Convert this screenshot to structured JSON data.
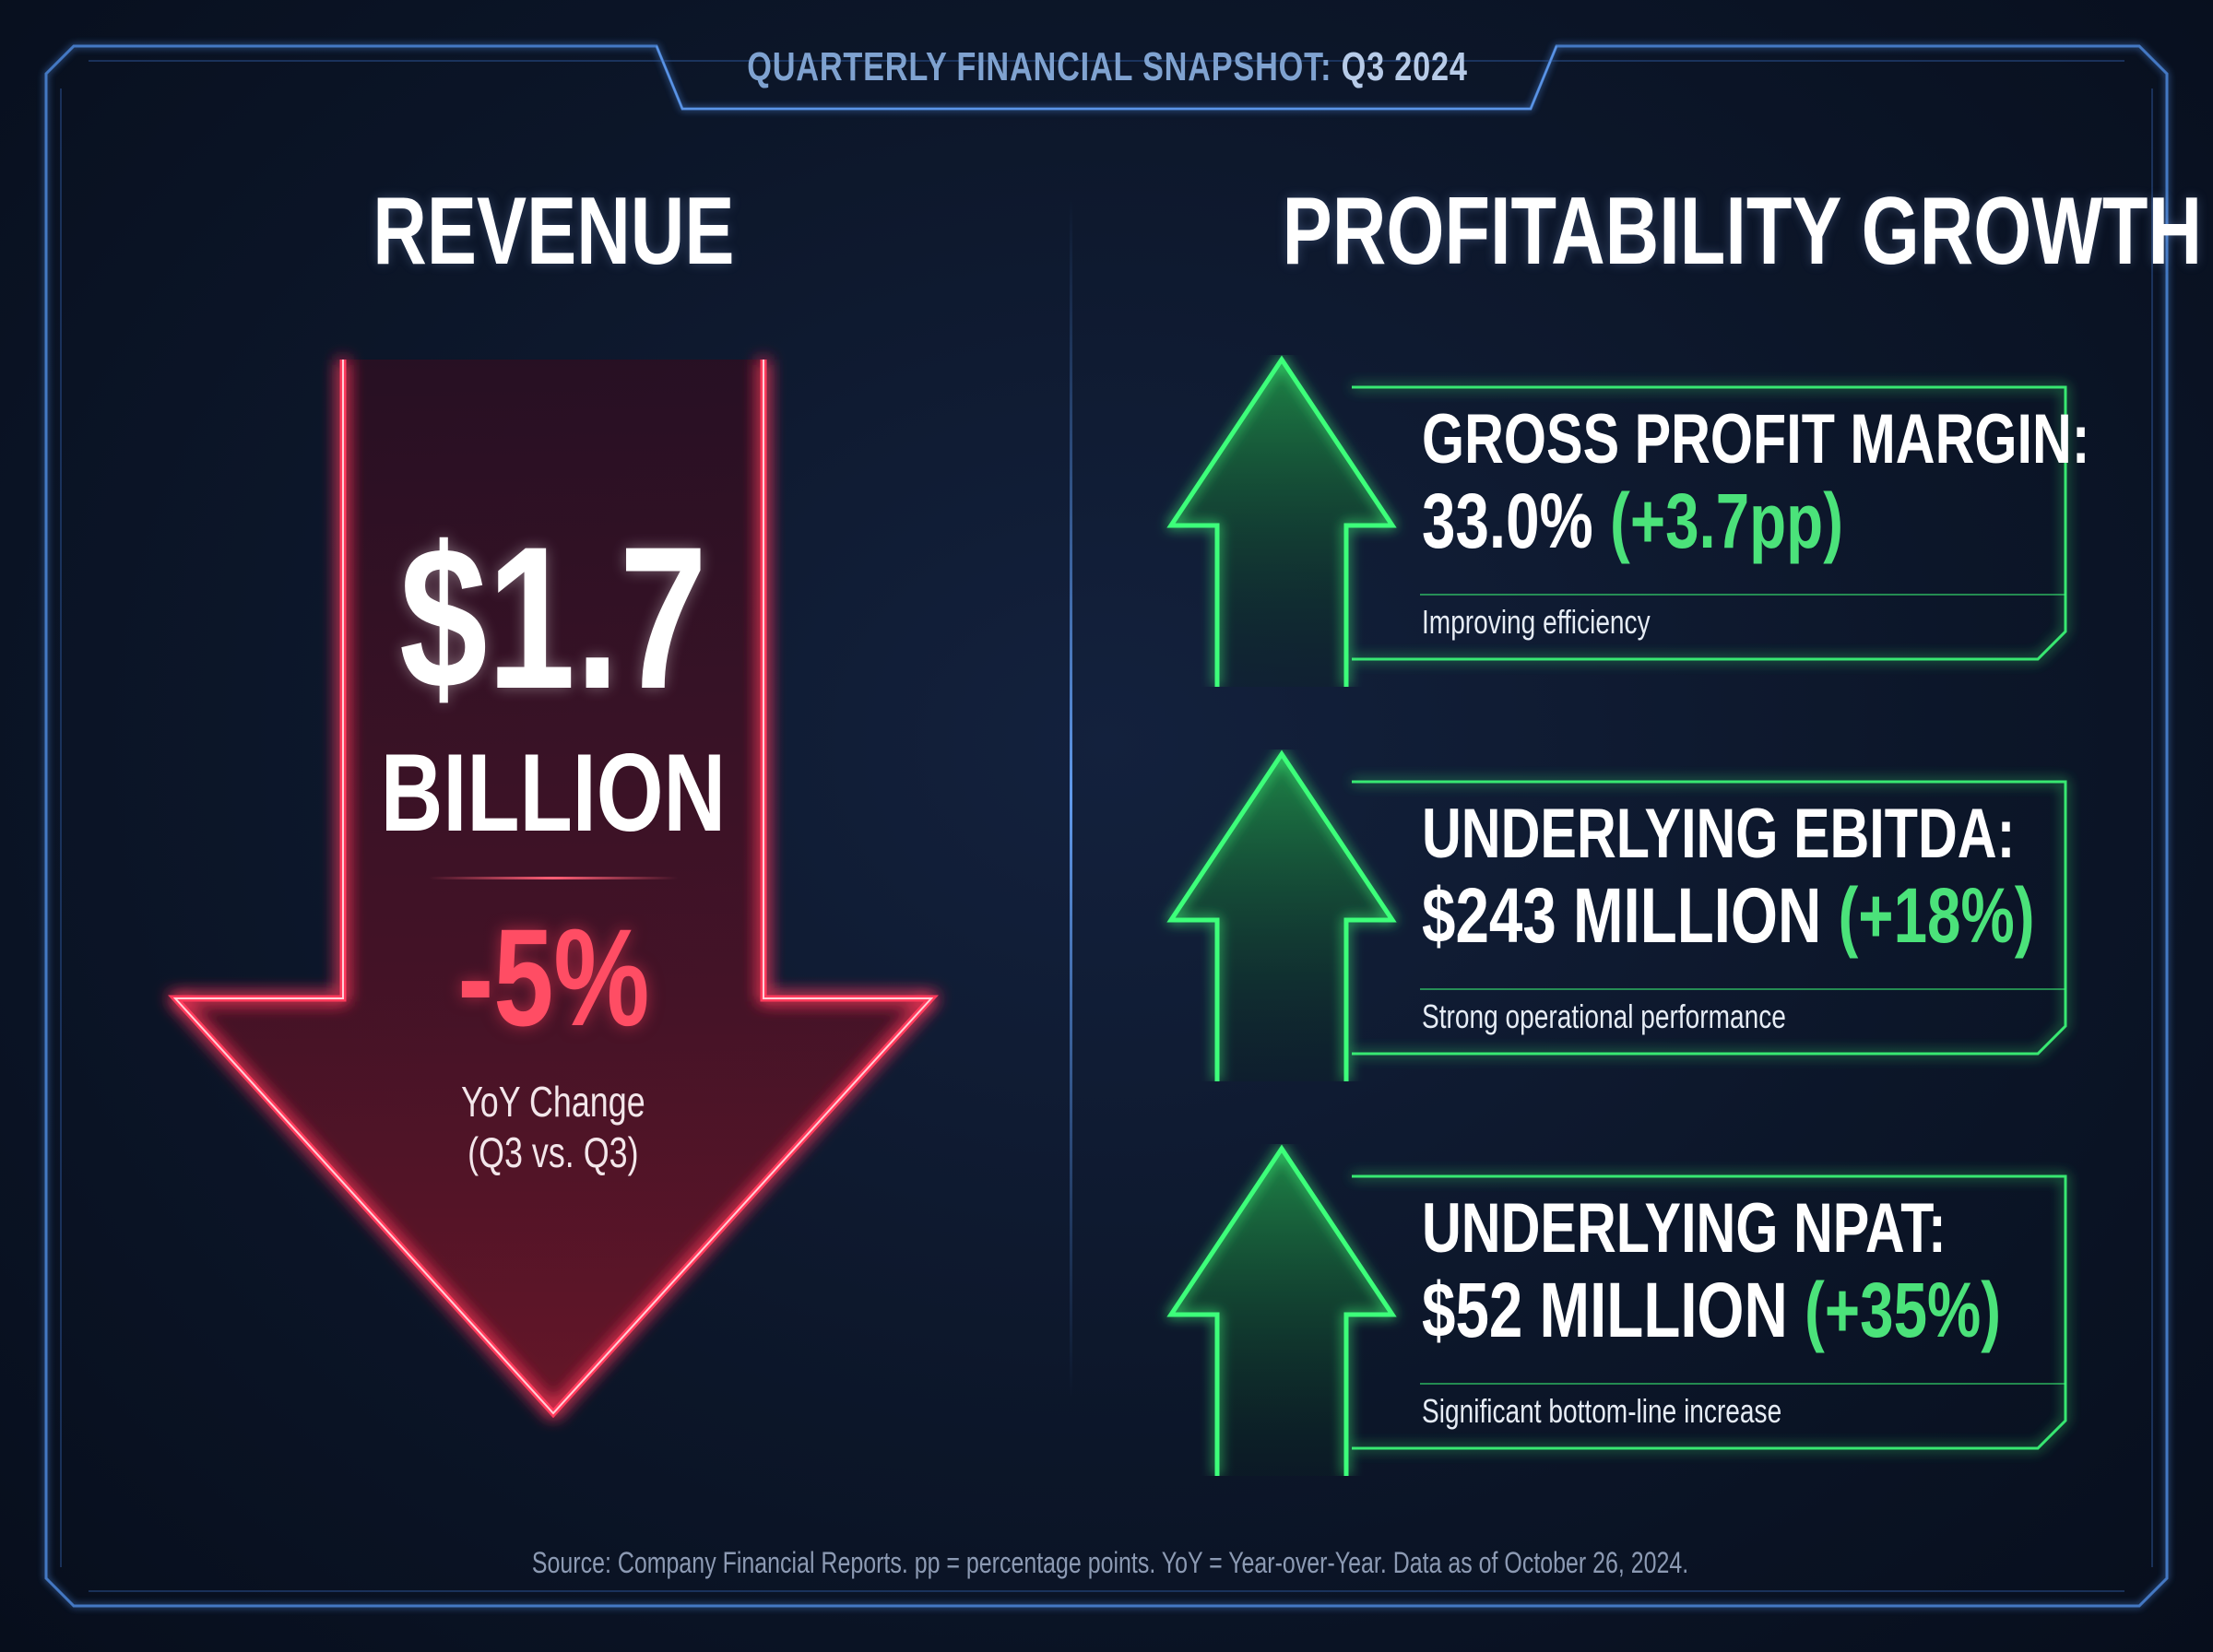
{
  "title": {
    "main": "QUARTERLY FINANCIAL SNAPSHOT:",
    "quarter": "Q3 2024"
  },
  "revenue": {
    "heading": "REVENUE",
    "value": "$1.7",
    "unit": "BILLION",
    "change": "-5%",
    "change_label_line1": "YoY Change",
    "change_label_line2": "(Q3 vs. Q3)"
  },
  "profitability": {
    "heading": "PROFITABILITY GROWTH",
    "metrics": [
      {
        "title": "GROSS PROFIT MARGIN:",
        "value": "33.0%",
        "change": "(+3.7pp)",
        "note": "Improving efficiency"
      },
      {
        "title": "UNDERLYING EBITDA:",
        "value": "$243 MILLION",
        "change": "(+18%)",
        "note": "Strong operational performance"
      },
      {
        "title": "UNDERLYING NPAT:",
        "value": "$52 MILLION",
        "change": "(+35%)",
        "note": "Significant bottom-line increase"
      }
    ]
  },
  "footer": {
    "source": "Source: Company Financial Reports. pp = percentage points. YoY = Year-over-Year. Data as of October 26, 2024."
  },
  "colors": {
    "background": "#0b1426",
    "frame": "#4f8be0",
    "down_red": "#ff3b5c",
    "up_green": "#3dff7a",
    "title_blue": "#7fa2d0"
  }
}
